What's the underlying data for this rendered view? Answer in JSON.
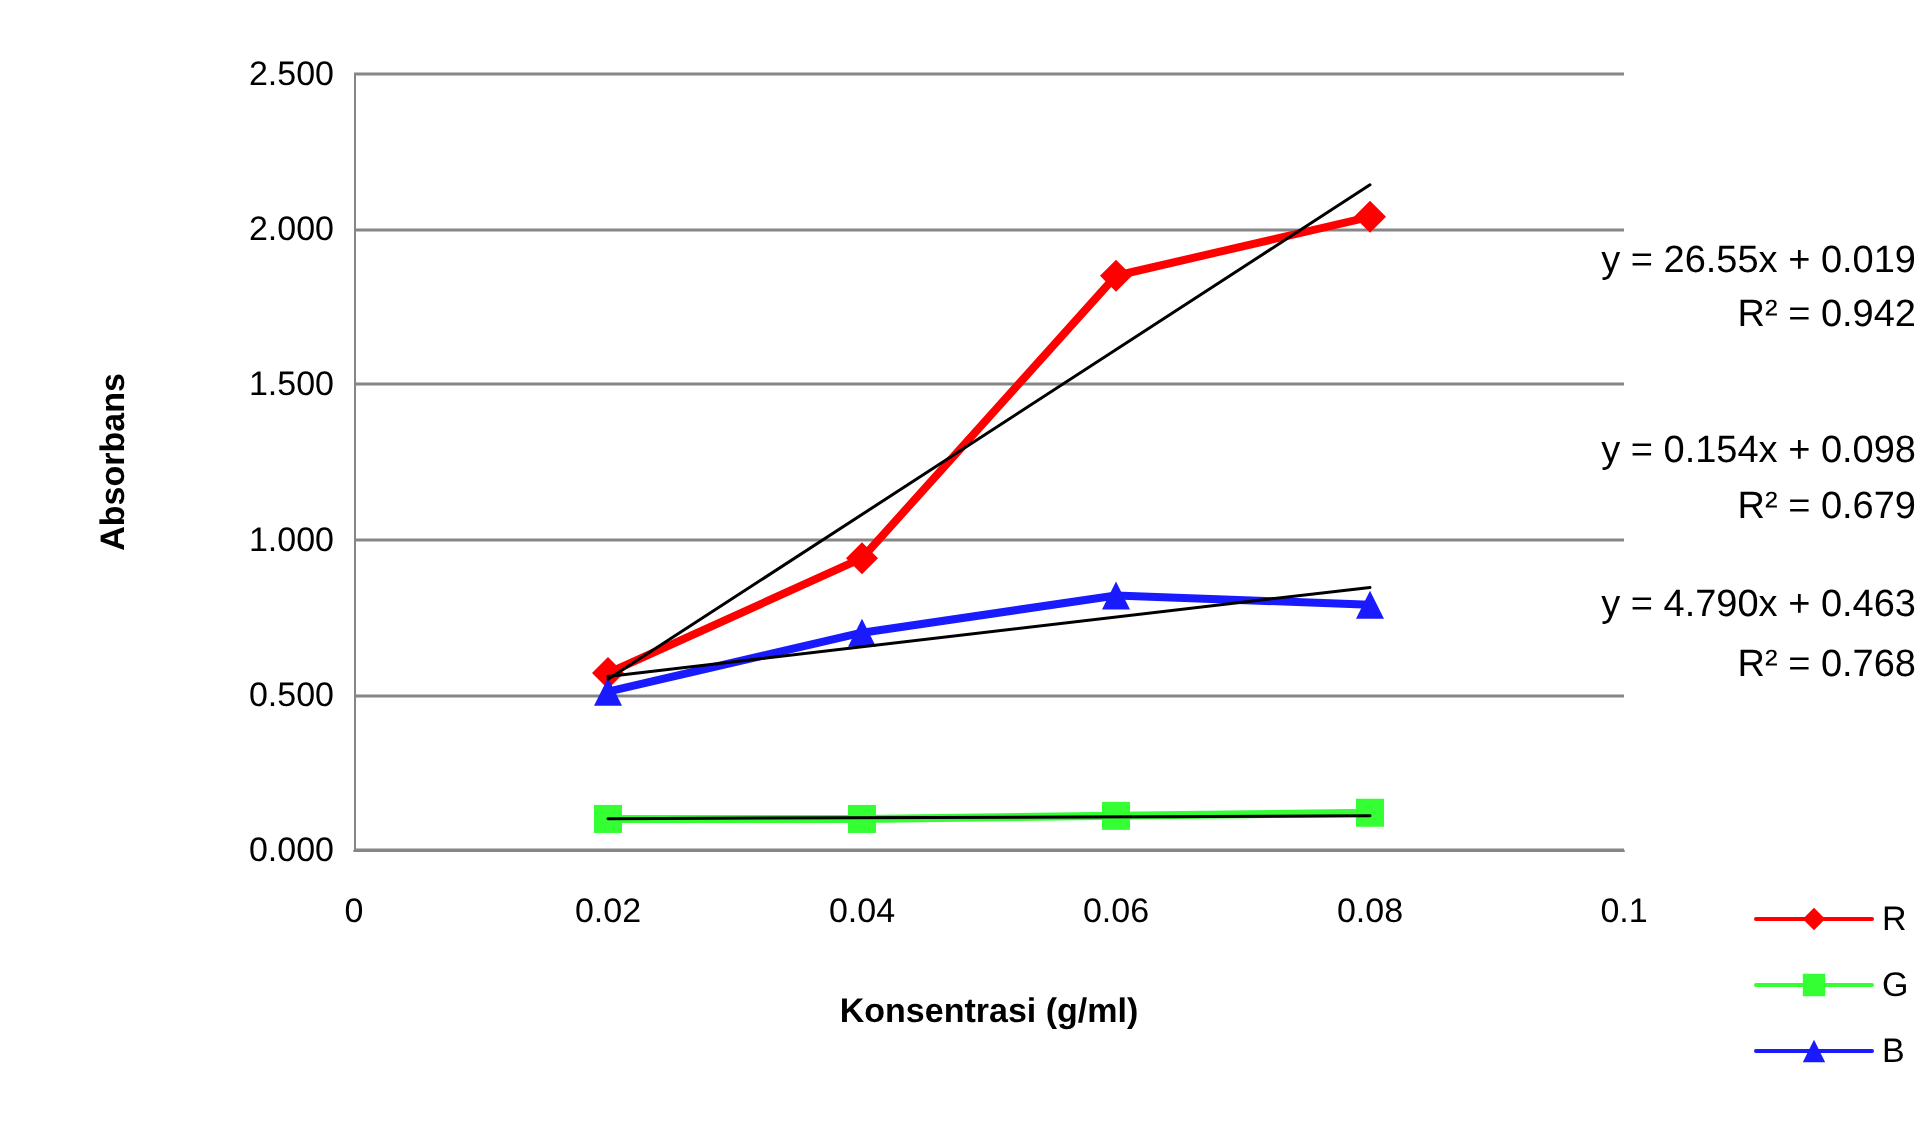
{
  "chart_data": {
    "type": "line",
    "xlabel": "Konsentrasi (g/ml)",
    "ylabel": "Absorbans",
    "xlim": [
      0,
      0.1
    ],
    "xticks": [
      0,
      0.02,
      0.04,
      0.06,
      0.08,
      0.1
    ],
    "ylim": [
      0,
      2.5
    ],
    "yticks": [
      {
        "value": 0,
        "label": "0.000"
      },
      {
        "value": 0.5,
        "label": "0.500"
      },
      {
        "value": 1,
        "label": "1.000"
      },
      {
        "value": 1.5,
        "label": "1.500"
      },
      {
        "value": 2,
        "label": "2.000"
      },
      {
        "value": 2.5,
        "label": "2.500"
      }
    ],
    "grid": "y",
    "legend": "bottom right",
    "series": [
      {
        "name": "R",
        "color": "#ff0000",
        "marker": "diamond",
        "x": [
          0.02,
          0.04,
          0.06,
          0.08
        ],
        "values": [
          0.57,
          0.94,
          1.85,
          2.04
        ]
      },
      {
        "name": "G",
        "color": "#33ff33",
        "marker": "square",
        "x": [
          0.02,
          0.04,
          0.06,
          0.08
        ],
        "values": [
          0.1,
          0.1,
          0.11,
          0.12
        ]
      },
      {
        "name": "B",
        "color": "#1a1aff",
        "marker": "triangle",
        "x": [
          0.02,
          0.04,
          0.06,
          0.08
        ],
        "values": [
          0.51,
          0.7,
          0.82,
          0.79
        ]
      },
      {
        "color": "#000000",
        "marker": "none",
        "x": [
          0.02,
          0.08
        ],
        "values": [
          0.55,
          2.143
        ]
      },
      {
        "color": "#000000",
        "marker": "none",
        "x": [
          0.02,
          0.08
        ],
        "values": [
          0.101,
          0.11
        ]
      },
      {
        "color": "#000000",
        "marker": "none",
        "x": [
          0.02,
          0.08
        ],
        "values": [
          0.559,
          0.846
        ]
      }
    ],
    "annotations": [
      "y = 26.55x + 0.019",
      "R² = 0.942",
      "y = 0.154x + 0.098",
      "R² = 0.679",
      "y = 4.790x + 0.463",
      "R² = 0.768"
    ]
  }
}
